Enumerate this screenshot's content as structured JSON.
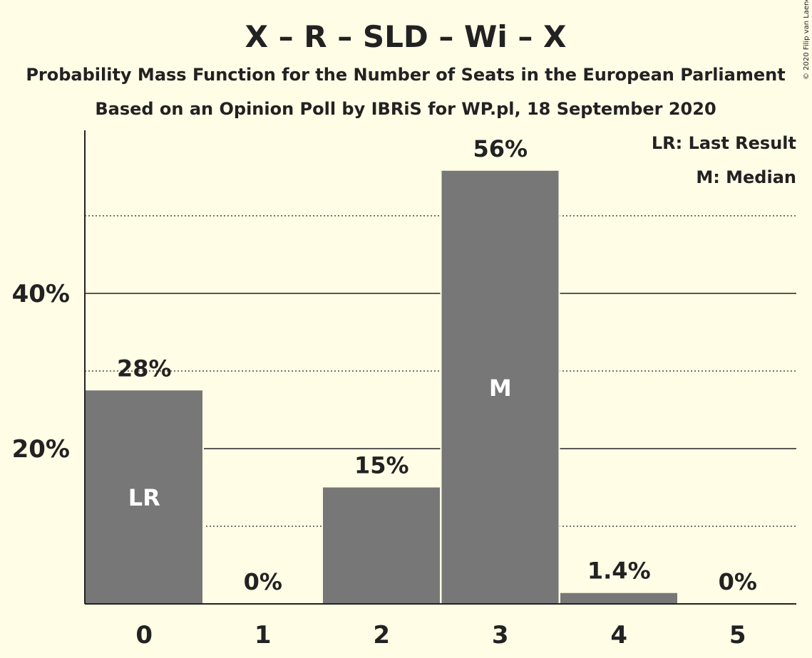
{
  "title": "X – R – SLD – Wi – X",
  "subtitle1": "Probability Mass Function for the Number of Seats in the European Parliament",
  "subtitle2": "Based on an Opinion Poll by IBRiS for WP.pl, 18 September 2020",
  "legend": {
    "lr": "LR: Last Result",
    "m": "M: Median"
  },
  "copyright": "© 2020 Filip van Laenen",
  "colors": {
    "background": "#fffde6",
    "bar": "#777777",
    "text": "#222222"
  },
  "chart_data": {
    "type": "bar",
    "categories": [
      "0",
      "1",
      "2",
      "3",
      "4",
      "5"
    ],
    "values": [
      27.5,
      0,
      15,
      55.8,
      1.4,
      0
    ],
    "value_labels": [
      "28%",
      "0%",
      "15%",
      "56%",
      "1.4%",
      "0%"
    ],
    "bar_markers": [
      "LR",
      "",
      "",
      "M",
      "",
      ""
    ],
    "yticks": [
      20,
      40
    ],
    "ytick_labels": [
      "20%",
      "40%"
    ],
    "minor_gridlines": [
      10,
      30,
      50
    ],
    "ylim": [
      0,
      60
    ],
    "xlabel": "",
    "ylabel": "",
    "legend_placement": "top-right"
  }
}
